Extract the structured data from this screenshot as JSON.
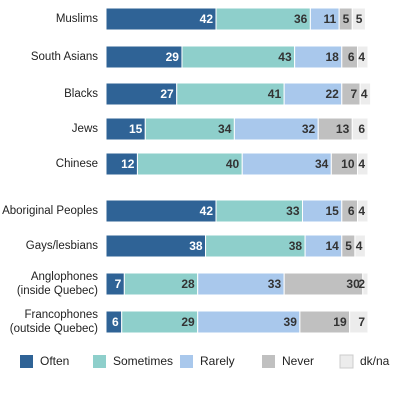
{
  "chart_data": {
    "type": "bar",
    "orientation": "horizontal",
    "stacked": true,
    "categories": [
      "Muslims",
      "South Asians",
      "Blacks",
      "Jews",
      "Chinese",
      "Aboriginal Peoples",
      "Gays/lesbians",
      "Anglophones\n(inside Quebec)",
      "Francophones\n(outside Quebec)"
    ],
    "series": [
      {
        "name": "Often",
        "color": "#2f6396",
        "label_color": "#ffffff",
        "values": [
          42,
          29,
          27,
          15,
          12,
          42,
          38,
          7,
          6
        ]
      },
      {
        "name": "Sometimes",
        "color": "#8ecfcb",
        "label_color": "#333333",
        "values": [
          36,
          43,
          41,
          34,
          40,
          33,
          38,
          28,
          29
        ]
      },
      {
        "name": "Rarely",
        "color": "#a9c8ec",
        "label_color": "#333333",
        "values": [
          11,
          18,
          22,
          32,
          34,
          15,
          14,
          33,
          39
        ]
      },
      {
        "name": "Never",
        "color": "#c0c0c0",
        "label_color": "#333333",
        "values": [
          5,
          6,
          7,
          13,
          10,
          6,
          5,
          30,
          19
        ]
      },
      {
        "name": "dk/na",
        "color": "#ececec",
        "label_color": "#333333",
        "values": [
          5,
          4,
          4,
          6,
          4,
          4,
          4,
          2,
          7
        ]
      }
    ],
    "legend": "bottom"
  }
}
